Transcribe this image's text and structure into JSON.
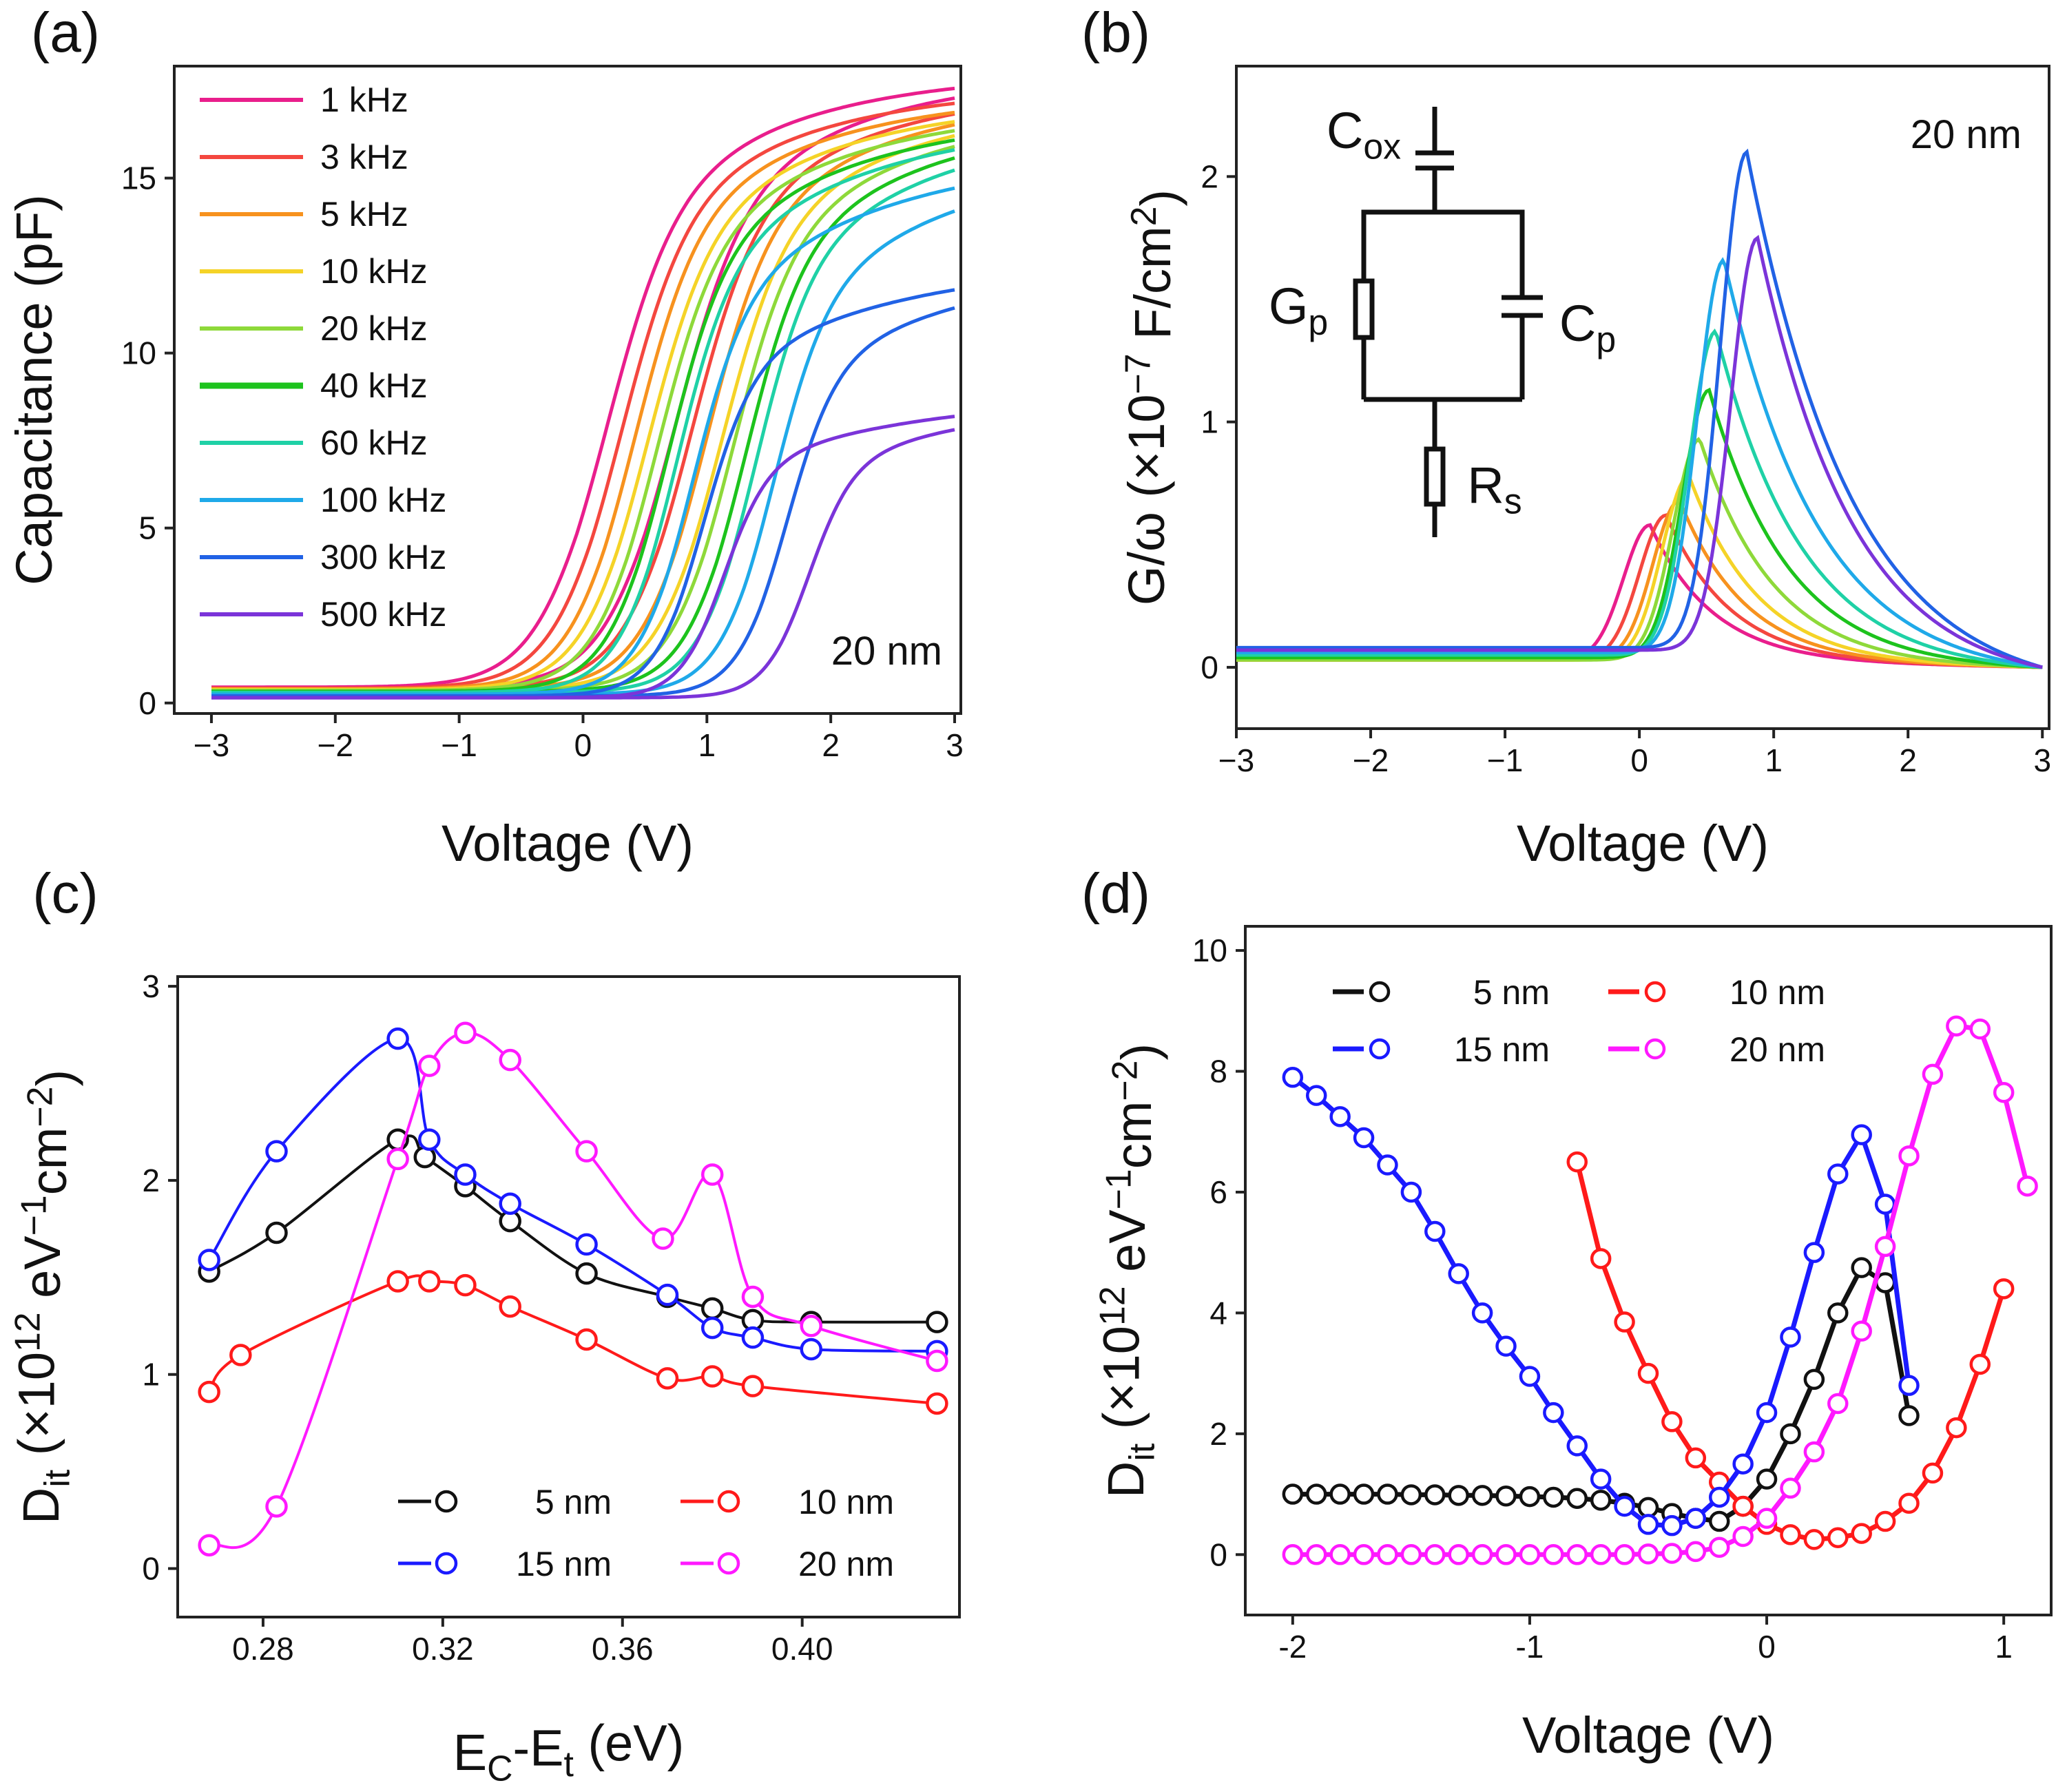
{
  "chart_data": [
    {
      "type": "line",
      "panel_label": "(a)",
      "xlabel": "Voltage (V)",
      "ylabel": "Capacitance (pF)",
      "xlim": [
        -3.3,
        3.05
      ],
      "ylim": [
        -0.3,
        18.2
      ],
      "xticks": [
        -3,
        -2,
        -1,
        0,
        1,
        2,
        3
      ],
      "xtick_labels": [
        "−3",
        "−2",
        "−1",
        "0",
        "1",
        "2",
        "3"
      ],
      "yticks": [
        0,
        5,
        10,
        15
      ],
      "annotation": "20 nm",
      "legend_position": "top-left",
      "series": [
        {
          "name": "1 kHz",
          "color": "#e91e8c",
          "vfb": 0.15,
          "cmax": 18.0,
          "cknee": 13.8,
          "cmin": 0.45,
          "steep": 0.28,
          "hyst": 0.0
        },
        {
          "name": "3 kHz",
          "color": "#f4473f",
          "vfb": 0.27,
          "cmax": 17.6,
          "cknee": 13.6,
          "cmin": 0.42,
          "steep": 0.27,
          "hyst": 0.0
        },
        {
          "name": "5 kHz",
          "color": "#f7921e",
          "vfb": 0.38,
          "cmax": 17.4,
          "cknee": 13.3,
          "cmin": 0.4,
          "steep": 0.26,
          "hyst": 0.0
        },
        {
          "name": "10 kHz",
          "color": "#f5d327",
          "vfb": 0.48,
          "cmax": 17.2,
          "cknee": 13.0,
          "cmin": 0.38,
          "steep": 0.26,
          "hyst": 0.0
        },
        {
          "name": "20 kHz",
          "color": "#8ed93a",
          "vfb": 0.56,
          "cmax": 17.0,
          "cknee": 12.7,
          "cmin": 0.36,
          "steep": 0.25,
          "hyst": 0.0
        },
        {
          "name": "40 kHz",
          "color": "#1dc31d",
          "vfb": 0.65,
          "cmax": 16.8,
          "cknee": 12.4,
          "cmin": 0.33,
          "steep": 0.24,
          "hyst": 0.0
        },
        {
          "name": "60 kHz",
          "color": "#1fd1a6",
          "vfb": 0.72,
          "cmax": 16.6,
          "cknee": 12.0,
          "cmin": 0.3,
          "steep": 0.23,
          "hyst": 0.0
        },
        {
          "name": "100 kHz",
          "color": "#1fa9e9",
          "vfb": 0.85,
          "cmax": 15.6,
          "cknee": 11.0,
          "cmin": 0.25,
          "steep": 0.22,
          "hyst": 0.0
        },
        {
          "name": "300 kHz",
          "color": "#2162e5",
          "vfb": 0.95,
          "cmax": 12.5,
          "cknee": 9.2,
          "cmin": 0.2,
          "steep": 0.2,
          "hyst": 0.0
        },
        {
          "name": "500 kHz",
          "color": "#7b34d9",
          "vfb": 1.12,
          "cmax": 8.7,
          "cknee": 6.6,
          "cmin": 0.15,
          "steep": 0.18,
          "hyst": 0.0
        }
      ]
    },
    {
      "type": "line",
      "panel_label": "(b)",
      "xlabel": "Voltage (V)",
      "ylabel_parts": [
        "G/ω (×10",
        "−7",
        " F/cm",
        "2",
        ")"
      ],
      "xlim": [
        -3.0,
        3.05
      ],
      "ylim": [
        -0.25,
        2.45
      ],
      "xticks": [
        -3,
        -2,
        -1,
        0,
        1,
        2,
        3
      ],
      "xtick_labels": [
        "−3",
        "−2",
        "−1",
        "0",
        "1",
        "2",
        "3"
      ],
      "yticks": [
        0,
        1,
        2
      ],
      "annotation": "20 nm",
      "inset_labels": {
        "cox": "C",
        "cox_sub": "ox",
        "gp": "G",
        "gp_sub": "p",
        "cp": "C",
        "cp_sub": "p",
        "rs": "R",
        "rs_sub": "s"
      },
      "series": [
        {
          "name": "1 kHz",
          "color": "#e91e8c",
          "peak_v": 0.08,
          "peak": 0.58,
          "base": 0.03
        },
        {
          "name": "3 kHz",
          "color": "#f4473f",
          "peak_v": 0.2,
          "peak": 0.62,
          "base": 0.03
        },
        {
          "name": "5 kHz",
          "color": "#f7921e",
          "peak_v": 0.3,
          "peak": 0.68,
          "base": 0.03
        },
        {
          "name": "10 kHz",
          "color": "#f5d327",
          "peak_v": 0.37,
          "peak": 0.78,
          "base": 0.03
        },
        {
          "name": "20 kHz",
          "color": "#8ed93a",
          "peak_v": 0.45,
          "peak": 0.93,
          "base": 0.03
        },
        {
          "name": "40 kHz",
          "color": "#1dc31d",
          "peak_v": 0.52,
          "peak": 1.13,
          "base": 0.04
        },
        {
          "name": "60 kHz",
          "color": "#1fd1a6",
          "peak_v": 0.57,
          "peak": 1.37,
          "base": 0.05
        },
        {
          "name": "100 kHz",
          "color": "#1fa9e9",
          "peak_v": 0.63,
          "peak": 1.66,
          "base": 0.06
        },
        {
          "name": "300 kHz",
          "color": "#2162e5",
          "peak_v": 0.8,
          "peak": 2.1,
          "base": 0.08
        },
        {
          "name": "500 kHz",
          "color": "#7b34d9",
          "peak_v": 0.88,
          "peak": 1.75,
          "base": 0.07
        }
      ]
    },
    {
      "type": "line",
      "panel_label": "(c)",
      "xlabel_parts": [
        "E",
        "C",
        "-E",
        "t",
        " (eV)"
      ],
      "ylabel_parts": [
        "D",
        "it",
        " (×10",
        "12",
        " eV",
        "−1",
        "cm",
        "−2",
        ")"
      ],
      "xlim": [
        0.261,
        0.435
      ],
      "ylim": [
        -0.25,
        3.05
      ],
      "xticks": [
        0.28,
        0.32,
        0.36,
        0.4
      ],
      "xtick_labels": [
        "0.28",
        "0.32",
        "0.36",
        "0.40"
      ],
      "yticks": [
        0,
        1,
        2,
        3
      ],
      "legend_position": "bottom-right",
      "series": [
        {
          "name": "5 nm",
          "color": "#111111",
          "x": [
            0.268,
            0.283,
            0.31,
            0.316,
            0.325,
            0.335,
            0.352,
            0.37,
            0.38,
            0.389,
            0.402,
            0.43
          ],
          "y": [
            1.53,
            1.73,
            2.21,
            2.12,
            1.97,
            1.79,
            1.52,
            1.4,
            1.34,
            1.28,
            1.27,
            1.27
          ]
        },
        {
          "name": "10 nm",
          "color": "#ff1a1a",
          "x": [
            0.268,
            0.275,
            0.31,
            0.317,
            0.325,
            0.335,
            0.352,
            0.37,
            0.38,
            0.389,
            0.43
          ],
          "y": [
            0.91,
            1.1,
            1.48,
            1.48,
            1.46,
            1.35,
            1.18,
            0.98,
            0.99,
            0.94,
            0.85
          ]
        },
        {
          "name": "15 nm",
          "color": "#1a1aff",
          "x": [
            0.268,
            0.283,
            0.31,
            0.317,
            0.325,
            0.335,
            0.352,
            0.37,
            0.38,
            0.389,
            0.402,
            0.43
          ],
          "y": [
            1.59,
            2.15,
            2.73,
            2.21,
            2.03,
            1.88,
            1.67,
            1.41,
            1.24,
            1.19,
            1.13,
            1.12
          ]
        },
        {
          "name": "20 nm",
          "color": "#ff19ff",
          "x": [
            0.268,
            0.283,
            0.31,
            0.317,
            0.325,
            0.335,
            0.352,
            0.369,
            0.38,
            0.389,
            0.402,
            0.43
          ],
          "y": [
            0.12,
            0.32,
            2.11,
            2.59,
            2.76,
            2.62,
            2.15,
            1.7,
            2.03,
            1.4,
            1.25,
            1.07
          ]
        }
      ]
    },
    {
      "type": "line",
      "panel_label": "(d)",
      "xlabel": "Voltage (V)",
      "ylabel_parts": [
        "D",
        "it",
        " (×10",
        "12",
        " eV",
        "−1",
        "cm",
        "−2",
        ")"
      ],
      "xlim": [
        -2.2,
        1.2
      ],
      "ylim": [
        -1.0,
        10.4
      ],
      "xticks": [
        -2,
        -1,
        0,
        1
      ],
      "xtick_labels": [
        "-2",
        "-1",
        "0",
        "1"
      ],
      "yticks": [
        0,
        2,
        4,
        6,
        8,
        10
      ],
      "legend_position": "top-left",
      "series": [
        {
          "name": "5 nm",
          "color": "#111111",
          "x": [
            -2.0,
            -1.9,
            -1.8,
            -1.7,
            -1.6,
            -1.5,
            -1.4,
            -1.3,
            -1.2,
            -1.1,
            -1.0,
            -0.9,
            -0.8,
            -0.7,
            -0.6,
            -0.5,
            -0.4,
            -0.3,
            -0.2,
            -0.1,
            0.0,
            0.1,
            0.2,
            0.3,
            0.4,
            0.5,
            0.6
          ],
          "y": [
            1.0,
            1.0,
            1.0,
            1.0,
            1.0,
            0.99,
            0.99,
            0.98,
            0.98,
            0.97,
            0.96,
            0.95,
            0.93,
            0.9,
            0.85,
            0.78,
            0.68,
            0.6,
            0.55,
            0.8,
            1.25,
            2.0,
            2.9,
            4.0,
            4.75,
            4.5,
            2.3
          ]
        },
        {
          "name": "10 nm",
          "color": "#ff1a1a",
          "x": [
            -0.8,
            -0.7,
            -0.6,
            -0.5,
            -0.4,
            -0.3,
            -0.2,
            -0.1,
            0.0,
            0.1,
            0.2,
            0.3,
            0.4,
            0.5,
            0.6,
            0.7,
            0.8,
            0.9,
            1.0
          ],
          "y": [
            6.5,
            4.9,
            3.85,
            3.0,
            2.2,
            1.6,
            1.2,
            0.8,
            0.5,
            0.33,
            0.25,
            0.28,
            0.35,
            0.55,
            0.85,
            1.35,
            2.1,
            3.15,
            4.4
          ]
        },
        {
          "name": "15 nm",
          "color": "#1a1aff",
          "x": [
            -2.0,
            -1.9,
            -1.8,
            -1.7,
            -1.6,
            -1.5,
            -1.4,
            -1.3,
            -1.2,
            -1.1,
            -1.0,
            -0.9,
            -0.8,
            -0.7,
            -0.6,
            -0.5,
            -0.4,
            -0.3,
            -0.2,
            -0.1,
            0.0,
            0.1,
            0.2,
            0.3,
            0.4,
            0.5,
            0.6
          ],
          "y": [
            7.9,
            7.6,
            7.25,
            6.9,
            6.45,
            6.0,
            5.35,
            4.65,
            4.0,
            3.45,
            2.95,
            2.35,
            1.8,
            1.25,
            0.8,
            0.5,
            0.48,
            0.6,
            0.95,
            1.5,
            2.35,
            3.6,
            5.0,
            6.3,
            6.95,
            5.8,
            2.8
          ]
        },
        {
          "name": "20 nm",
          "color": "#ff19ff",
          "x": [
            -2.0,
            -1.9,
            -1.8,
            -1.7,
            -1.6,
            -1.5,
            -1.4,
            -1.3,
            -1.2,
            -1.1,
            -1.0,
            -0.9,
            -0.8,
            -0.7,
            -0.6,
            -0.5,
            -0.4,
            -0.3,
            -0.2,
            -0.1,
            0.0,
            0.1,
            0.2,
            0.3,
            0.4,
            0.5,
            0.6,
            0.7,
            0.8,
            0.9,
            1.0,
            1.1
          ],
          "y": [
            0.0,
            0.0,
            0.0,
            0.0,
            0.0,
            0.0,
            0.0,
            0.0,
            0.0,
            0.0,
            0.0,
            0.0,
            0.0,
            0.0,
            0.0,
            0.01,
            0.02,
            0.05,
            0.12,
            0.3,
            0.6,
            1.1,
            1.7,
            2.5,
            3.7,
            5.1,
            6.6,
            7.95,
            8.75,
            8.7,
            7.65,
            6.1
          ]
        }
      ]
    }
  ]
}
